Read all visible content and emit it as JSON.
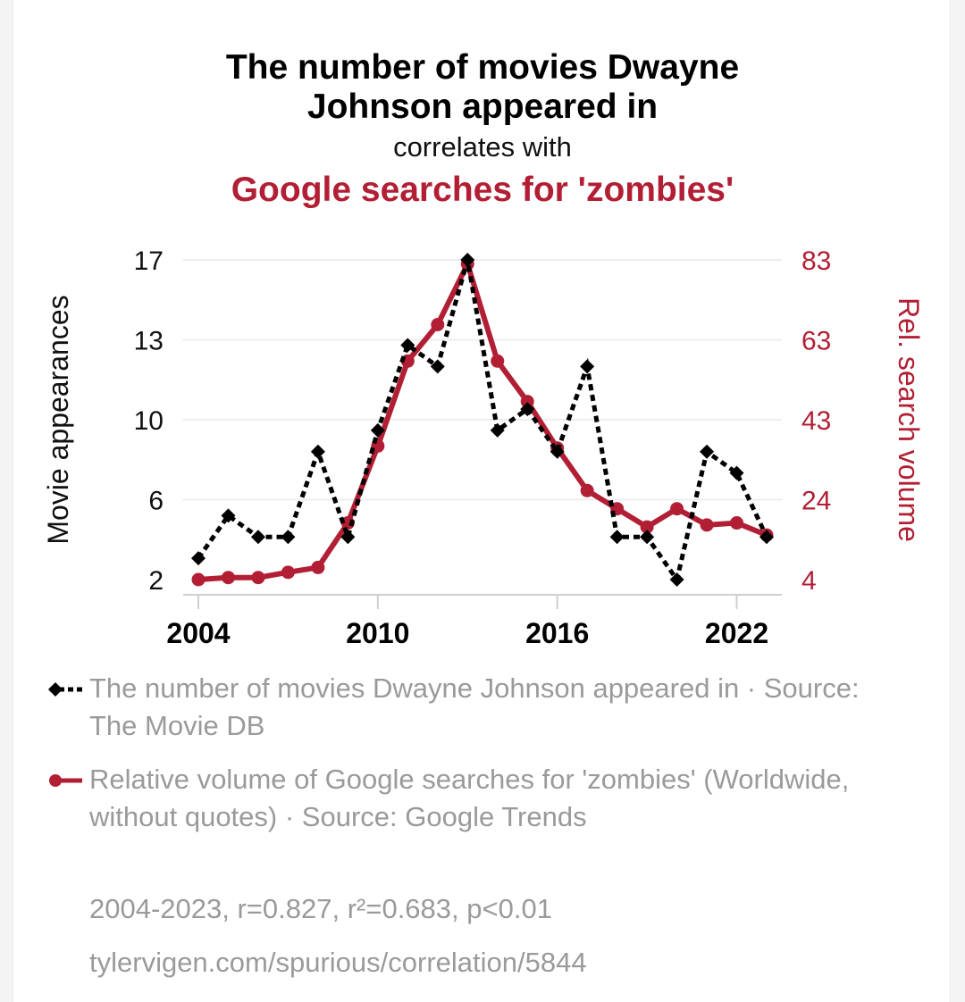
{
  "page": {
    "title": "The number of movies Dwayne Johnson appeared in",
    "connector": "correlates with",
    "subtitle": "Google searches for 'zombies'"
  },
  "colors": {
    "series1": "#000000",
    "series2": "#b21f34",
    "grid": "#eeeeee"
  },
  "chart_data": {
    "type": "line",
    "x": [
      2004,
      2005,
      2006,
      2007,
      2008,
      2009,
      2010,
      2011,
      2012,
      2013,
      2014,
      2015,
      2016,
      2017,
      2018,
      2019,
      2020,
      2021,
      2022,
      2023
    ],
    "x_ticks": [
      "2004",
      "2010",
      "2016",
      "2022"
    ],
    "x_tick_values": [
      2004,
      2010,
      2016,
      2022
    ],
    "left_axis": {
      "label": "Movie appearances",
      "ticks": [
        "2",
        "6",
        "10",
        "13",
        "17"
      ],
      "ylim": [
        2,
        17
      ]
    },
    "right_axis": {
      "label": "Rel. search volume",
      "ticks": [
        "4",
        "24",
        "43",
        "63",
        "83"
      ],
      "ylim": [
        4,
        83
      ]
    },
    "grid": true,
    "series": [
      {
        "name": "The number of movies Dwayne Johnson appeared in",
        "axis": "left",
        "style": "dashed-diamond",
        "values": [
          3,
          5,
          4,
          4,
          8,
          4,
          9,
          13,
          12,
          17,
          9,
          10,
          8,
          12,
          4,
          4,
          2,
          8,
          7,
          4
        ]
      },
      {
        "name": "Relative volume of Google searches for 'zombies' (Worldwide, without quotes)",
        "axis": "right",
        "style": "solid-circle",
        "values": [
          4,
          4.5,
          4.5,
          5.8,
          7,
          18,
          37,
          58,
          67,
          82,
          58,
          48,
          36.5,
          26,
          21.5,
          17,
          21.5,
          17.5,
          18,
          15
        ]
      }
    ]
  },
  "legend": {
    "item1_text": "The number of movies Dwayne Johnson appeared in · Source: The Movie DB",
    "item2_text": "Relative volume of Google searches for 'zombies' (Worldwide, without quotes) · Source: Google Trends"
  },
  "footer": {
    "stats": "2004-2023, r=0.827, r²=0.683, p<0.01",
    "url": "tylervigen.com/spurious/correlation/5844"
  }
}
